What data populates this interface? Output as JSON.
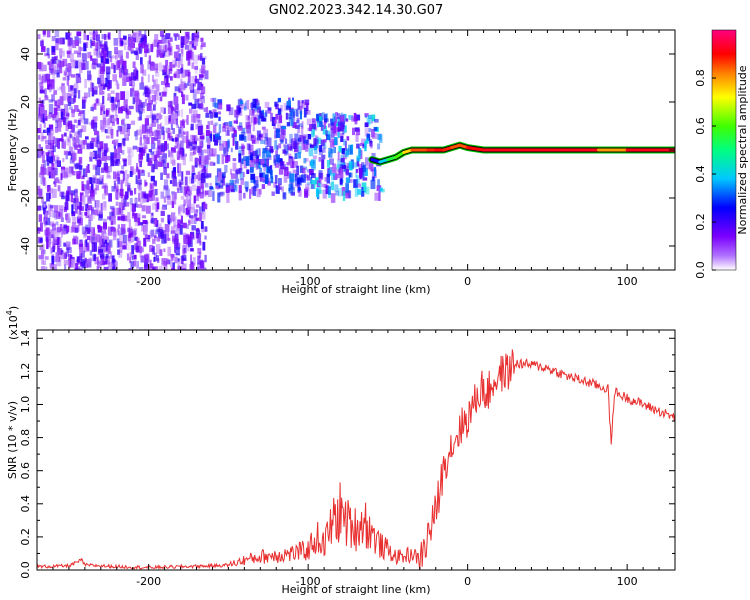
{
  "title": "GN02.2023.342.14.30.G07",
  "colors": {
    "snr_line": "#e83030",
    "ridge_outline": "#000000",
    "colormap": [
      "#ffffff",
      "#7b00ff",
      "#0000ff",
      "#00ffff",
      "#00ff00",
      "#ffff00",
      "#ff8000",
      "#ff0000",
      "#ff00a0"
    ]
  },
  "chart_data": [
    {
      "type": "heatmap",
      "xlabel": "Height of straight line (km)",
      "ylabel": "Frequency (Hz)",
      "xlim": [
        -270,
        130
      ],
      "ylim": [
        -50,
        50
      ],
      "xticks": [
        -200,
        -100,
        0,
        100
      ],
      "yticks": [
        -40,
        -20,
        0,
        20,
        40
      ],
      "colorbar": {
        "label": "Normalized spectral amplitude",
        "range": [
          0,
          1
        ],
        "ticks": [
          "0.0",
          "0.2",
          "0.4",
          "0.6",
          "0.8"
        ]
      },
      "ridge": {
        "x": [
          -60,
          -55,
          -50,
          -45,
          -40,
          -35,
          -30,
          -25,
          -20,
          -15,
          -10,
          -5,
          0,
          10,
          30,
          60,
          82,
          100,
          130
        ],
        "y": [
          -4,
          -5,
          -4,
          -3,
          -1,
          0,
          0,
          0,
          0,
          0,
          1,
          2,
          1,
          0,
          0,
          0,
          0,
          0,
          0
        ],
        "amplitude": [
          0.25,
          0.4,
          0.55,
          0.6,
          0.75,
          0.85,
          0.85,
          0.88,
          0.9,
          0.88,
          0.85,
          0.85,
          0.9,
          0.92,
          0.92,
          0.92,
          0.8,
          0.92,
          0.92
        ]
      },
      "noise_regions": [
        {
          "x_range": [
            -270,
            -165
          ],
          "y_range": [
            -50,
            50
          ],
          "level": 0.12
        },
        {
          "x_range": [
            -165,
            -100
          ],
          "y_range": [
            -18,
            22
          ],
          "level": 0.18
        },
        {
          "x_range": [
            -100,
            -55
          ],
          "y_range": [
            -18,
            16
          ],
          "level": 0.22
        }
      ]
    },
    {
      "type": "line",
      "xlabel": "Height of straight line (km)",
      "ylabel": "SNR (10 * v/v)",
      "y_multiplier": "(x10^4)",
      "xlim": [
        -270,
        130
      ],
      "ylim": [
        0,
        1.45
      ],
      "xticks": [
        -200,
        -100,
        0,
        100
      ],
      "yticks": [
        0.0,
        0.2,
        0.4,
        0.6,
        0.8,
        1.0,
        1.2,
        1.4
      ],
      "series": [
        {
          "x": [
            -270,
            -250,
            -242,
            -240,
            -220,
            -200,
            -180,
            -160,
            -150,
            -140,
            -130,
            -120,
            -110,
            -100,
            -95,
            -90,
            -85,
            -80,
            -75,
            -70,
            -65,
            -60,
            -55,
            -50,
            -45,
            -40,
            -35,
            -30,
            -28,
            -25,
            -20,
            -15,
            -12,
            -10,
            -5,
            0,
            5,
            8,
            10,
            12,
            15,
            20,
            25,
            30,
            40,
            50,
            60,
            70,
            80,
            85,
            88,
            90,
            92,
            95,
            100,
            110,
            120,
            130
          ],
          "y": [
            0.02,
            0.025,
            0.06,
            0.03,
            0.02,
            0.015,
            0.02,
            0.025,
            0.03,
            0.06,
            0.08,
            0.09,
            0.1,
            0.12,
            0.2,
            0.15,
            0.28,
            0.35,
            0.28,
            0.25,
            0.3,
            0.22,
            0.15,
            0.12,
            0.08,
            0.08,
            0.1,
            0.06,
            0.1,
            0.2,
            0.35,
            0.62,
            0.72,
            0.75,
            0.85,
            0.92,
            1.02,
            1.1,
            1.1,
            1.05,
            1.12,
            1.18,
            1.2,
            1.25,
            1.24,
            1.22,
            1.18,
            1.15,
            1.12,
            1.1,
            1.1,
            0.75,
            1.08,
            1.06,
            1.04,
            1.0,
            0.96,
            0.92
          ]
        }
      ]
    }
  ]
}
